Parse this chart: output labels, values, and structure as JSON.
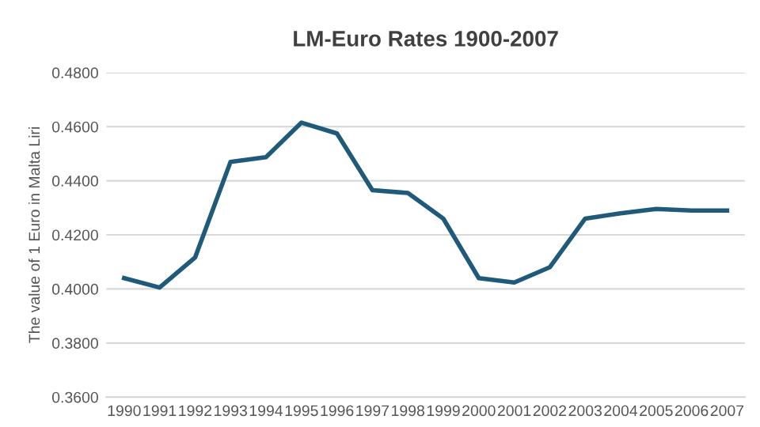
{
  "chart_data": {
    "type": "line",
    "title": "LM-Euro Rates 1900-2007",
    "ylabel": "The value of 1 Euro in Malta Liri",
    "categories": [
      "1990",
      "1991",
      "1992",
      "1993",
      "1994",
      "1995",
      "1996",
      "1997",
      "1998",
      "1999",
      "2000",
      "2001",
      "2002",
      "2003",
      "2004",
      "2005",
      "2006",
      "2007"
    ],
    "series": [
      {
        "color": "#1f5a7a",
        "values": [
          0.404,
          0.4005,
          0.4116,
          0.447,
          0.4487,
          0.4615,
          0.4575,
          0.4365,
          0.4355,
          0.426,
          0.404,
          0.4024,
          0.408,
          0.426,
          0.428,
          0.4296,
          0.429,
          0.429
        ]
      }
    ],
    "ylim": [
      0.36,
      0.48
    ],
    "yticks": [
      {
        "value": 0.36,
        "label": "0.3600"
      },
      {
        "value": 0.38,
        "label": "0.3800"
      },
      {
        "value": 0.4,
        "label": "0.4000"
      },
      {
        "value": 0.42,
        "label": "0.4200"
      },
      {
        "value": 0.44,
        "label": "0.4400"
      },
      {
        "value": 0.46,
        "label": "0.4600"
      },
      {
        "value": 0.48,
        "label": "0.4800"
      }
    ],
    "grid": "y",
    "marker": "none",
    "line_style": "solid"
  }
}
